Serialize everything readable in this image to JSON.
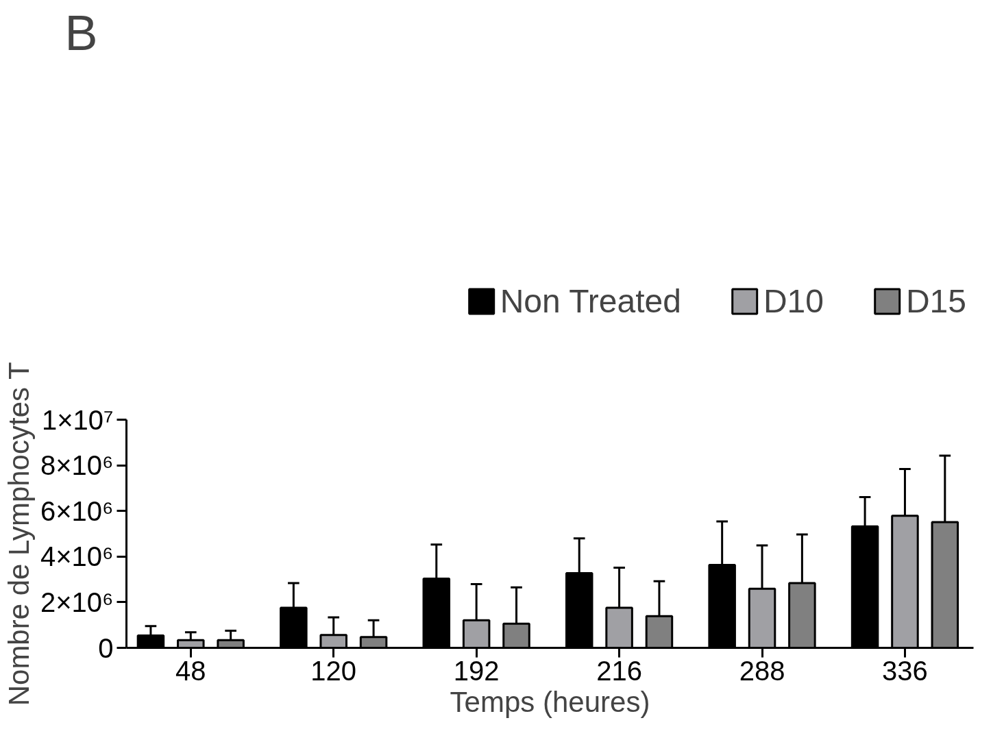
{
  "chart_data": {
    "type": "bar",
    "xlabel": "Temps (heures)",
    "ylabel": "Nombre de Lymphocytes T",
    "annotations": [
      "B"
    ],
    "categories": [
      "48",
      "120",
      "192",
      "216",
      "288",
      "336"
    ],
    "series": [
      {
        "name": "Non Treated",
        "color": "#000000",
        "values": [
          540000,
          1760000,
          3030000,
          3270000,
          3630000,
          5320000
        ],
        "errors": [
          [
            540000,
            950000
          ],
          [
            1760000,
            2840000
          ],
          [
            3030000,
            4530000
          ],
          [
            3270000,
            4800000
          ],
          [
            3630000,
            5540000
          ],
          [
            5320000,
            6610000
          ]
        ]
      },
      {
        "name": "D10",
        "color": "#a0a0a4",
        "values": [
          340000,
          560000,
          1210000,
          1760000,
          2590000,
          5790000
        ],
        "errors": [
          [
            340000,
            680000
          ],
          [
            560000,
            1340000
          ],
          [
            1210000,
            2790000
          ],
          [
            1760000,
            3510000
          ],
          [
            2590000,
            4490000
          ],
          [
            5790000,
            7840000
          ]
        ]
      },
      {
        "name": "D15",
        "color": "#808080",
        "values": [
          340000,
          470000,
          1060000,
          1390000,
          2840000,
          5510000
        ],
        "errors": [
          [
            340000,
            750000
          ],
          [
            470000,
            1210000
          ],
          [
            1060000,
            2650000
          ],
          [
            1390000,
            2920000
          ],
          [
            2840000,
            4970000
          ],
          [
            5510000,
            8420000
          ]
        ]
      }
    ],
    "ylim": [
      0,
      10000000
    ],
    "yticks": [
      {
        "value": 0,
        "label": "0"
      },
      {
        "value": 2000000,
        "label": "2×10⁶"
      },
      {
        "value": 4000000,
        "label": "4×10⁶"
      },
      {
        "value": 6000000,
        "label": "6×10⁶"
      },
      {
        "value": 8000000,
        "label": "8×10⁶"
      },
      {
        "value": 10000000,
        "label": "1×10⁷"
      }
    ],
    "grid": false,
    "legend": "top"
  }
}
